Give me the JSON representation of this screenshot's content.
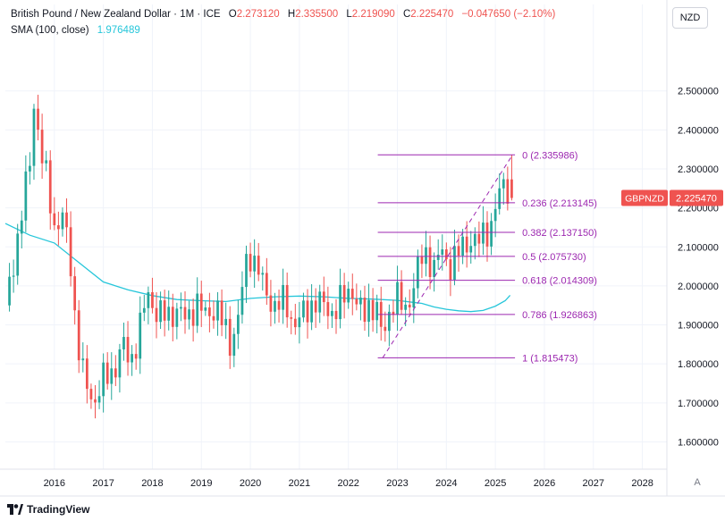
{
  "header": {
    "symbol_title": "British Pound / New Zealand Dollar · 1M · ICE",
    "open_label": "O",
    "open": "2.273120",
    "high_label": "H",
    "high": "2.335500",
    "low_label": "L",
    "low": "2.219090",
    "close_label": "C",
    "close": "2.225470",
    "change": "−0.047650 (−2.10%)",
    "sma_label": "SMA (100, close)",
    "sma_value": "1.976489"
  },
  "currency_button": "NZD",
  "auto_button": "A",
  "branding": "TradingView",
  "price_tag": {
    "symbol": "GBPNZD",
    "value": "2.225470"
  },
  "colors": {
    "up": "#26a69a",
    "down": "#ef5350",
    "sma": "#26c6da",
    "fib": "#9c27b0"
  },
  "chart_data": {
    "type": "candlestick",
    "title": "British Pound / New Zealand Dollar · 1M · ICE",
    "interval": "1M",
    "x_range": [
      2015.0,
      2028.5
    ],
    "ylim": [
      1.53,
      2.63
    ],
    "y_ticks": [
      "1.600000",
      "1.700000",
      "1.800000",
      "1.900000",
      "2.000000",
      "2.100000",
      "2.200000",
      "2.300000",
      "2.400000",
      "2.500000"
    ],
    "y_tick_values": [
      1.6,
      1.7,
      1.8,
      1.9,
      2.0,
      2.1,
      2.2,
      2.3,
      2.4,
      2.5
    ],
    "x_ticks": [
      "2016",
      "2017",
      "2018",
      "2019",
      "2020",
      "2021",
      "2022",
      "2023",
      "2024",
      "2025",
      "2026",
      "2027",
      "2028"
    ],
    "x_tick_values": [
      2016,
      2017,
      2018,
      2019,
      2020,
      2021,
      2022,
      2023,
      2024,
      2025,
      2026,
      2027,
      2028
    ],
    "anchors": [
      [
        2015.0,
        1.95
      ],
      [
        2015.25,
        2.12
      ],
      [
        2015.5,
        2.32
      ],
      [
        2015.6,
        2.5
      ],
      [
        2015.7,
        2.35
      ],
      [
        2015.85,
        2.27
      ],
      [
        2016.0,
        2.15
      ],
      [
        2016.15,
        2.18
      ],
      [
        2016.3,
        2.1
      ],
      [
        2016.45,
        1.88
      ],
      [
        2016.6,
        1.76
      ],
      [
        2016.8,
        1.7
      ],
      [
        2017.0,
        1.76
      ],
      [
        2017.2,
        1.78
      ],
      [
        2017.4,
        1.85
      ],
      [
        2017.55,
        1.8
      ],
      [
        2017.7,
        1.87
      ],
      [
        2017.9,
        1.98
      ],
      [
        2018.1,
        1.93
      ],
      [
        2018.3,
        1.92
      ],
      [
        2018.5,
        1.94
      ],
      [
        2018.7,
        1.91
      ],
      [
        2018.9,
        1.96
      ],
      [
        2019.1,
        1.92
      ],
      [
        2019.3,
        1.95
      ],
      [
        2019.5,
        1.88
      ],
      [
        2019.6,
        1.85
      ],
      [
        2019.75,
        1.92
      ],
      [
        2019.9,
        2.05
      ],
      [
        2020.0,
        2.08
      ],
      [
        2020.15,
        2.05
      ],
      [
        2020.3,
        1.98
      ],
      [
        2020.5,
        1.95
      ],
      [
        2020.7,
        1.96
      ],
      [
        2020.9,
        1.9
      ],
      [
        2021.1,
        1.93
      ],
      [
        2021.3,
        1.96
      ],
      [
        2021.5,
        1.95
      ],
      [
        2021.7,
        1.93
      ],
      [
        2021.9,
        1.97
      ],
      [
        2022.05,
        2.0
      ],
      [
        2022.15,
        1.96
      ],
      [
        2022.3,
        1.92
      ],
      [
        2022.45,
        1.96
      ],
      [
        2022.6,
        1.93
      ],
      [
        2022.7,
        1.86
      ],
      [
        2022.8,
        1.92
      ],
      [
        2022.9,
        1.96
      ],
      [
        2023.0,
        1.97
      ],
      [
        2023.15,
        1.93
      ],
      [
        2023.3,
        1.99
      ],
      [
        2023.45,
        2.06
      ],
      [
        2023.6,
        2.08
      ],
      [
        2023.75,
        2.05
      ],
      [
        2023.9,
        2.09
      ],
      [
        2024.05,
        2.05
      ],
      [
        2024.2,
        2.08
      ],
      [
        2024.35,
        2.1
      ],
      [
        2024.5,
        2.12
      ],
      [
        2024.65,
        2.11
      ],
      [
        2024.8,
        2.14
      ],
      [
        2024.9,
        2.15
      ],
      [
        2025.0,
        2.2
      ],
      [
        2025.1,
        2.24
      ],
      [
        2025.2,
        2.27
      ],
      [
        2025.3,
        2.23
      ]
    ],
    "last_candle": {
      "open": 2.27312,
      "high": 2.3355,
      "low": 2.21909,
      "close": 2.22547
    },
    "sma_series": [
      [
        2015.0,
        2.16
      ],
      [
        2015.5,
        2.13
      ],
      [
        2016.0,
        2.11
      ],
      [
        2016.5,
        2.06
      ],
      [
        2017.0,
        2.01
      ],
      [
        2017.5,
        1.99
      ],
      [
        2018.0,
        1.975
      ],
      [
        2018.5,
        1.965
      ],
      [
        2019.0,
        1.962
      ],
      [
        2019.5,
        1.96
      ],
      [
        2020.0,
        1.968
      ],
      [
        2020.5,
        1.972
      ],
      [
        2021.0,
        1.974
      ],
      [
        2021.5,
        1.972
      ],
      [
        2022.0,
        1.968
      ],
      [
        2022.5,
        1.966
      ],
      [
        2023.0,
        1.963
      ],
      [
        2023.3,
        1.958
      ],
      [
        2023.5,
        1.955
      ],
      [
        2023.75,
        1.946
      ],
      [
        2024.0,
        1.94
      ],
      [
        2024.25,
        1.936
      ],
      [
        2024.5,
        1.934
      ],
      [
        2024.75,
        1.937
      ],
      [
        2025.0,
        1.948
      ],
      [
        2025.2,
        1.962
      ],
      [
        2025.3,
        1.976
      ]
    ],
    "fib_start": [
      2022.7,
      1.815473
    ],
    "fib_end": [
      2025.35,
      2.335986
    ],
    "fib_x_start": 2022.6,
    "fib_levels": [
      {
        "ratio": "0",
        "value": 2.335986,
        "label": "0 (2.335986)"
      },
      {
        "ratio": "0.236",
        "value": 2.213145,
        "label": "0.236 (2.213145)"
      },
      {
        "ratio": "0.382",
        "value": 2.13715,
        "label": "0.382 (2.137150)"
      },
      {
        "ratio": "0.5",
        "value": 2.07573,
        "label": "0.5 (2.075730)"
      },
      {
        "ratio": "0.618",
        "value": 2.014309,
        "label": "0.618 (2.014309)"
      },
      {
        "ratio": "0.786",
        "value": 1.926863,
        "label": "0.786 (1.926863)"
      },
      {
        "ratio": "1",
        "value": 1.815473,
        "label": "1 (1.815473)"
      }
    ],
    "last_price": 2.22547,
    "last_price_label": "2.225470",
    "symbol_label": "GBPNZD"
  }
}
